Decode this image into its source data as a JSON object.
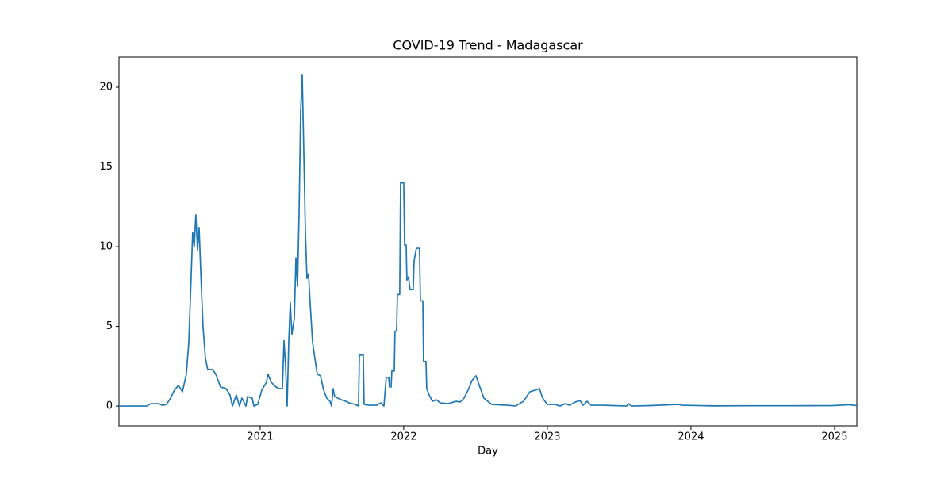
{
  "chart_data": {
    "type": "line",
    "title": "COVID-19 Trend - Madagascar",
    "x_label": "Day",
    "x": [
      2020.017,
      2020.21,
      2020.238,
      2020.293,
      2020.32,
      2020.348,
      2020.376,
      2020.403,
      2020.431,
      2020.459,
      2020.486,
      2020.503,
      2020.519,
      2020.53,
      2020.541,
      2020.552,
      2020.564,
      2020.575,
      2020.586,
      2020.602,
      2020.619,
      2020.635,
      2020.669,
      2020.691,
      2020.724,
      2020.762,
      2020.79,
      2020.807,
      2020.834,
      2020.856,
      2020.873,
      2020.901,
      2020.912,
      2020.945,
      2020.956,
      2020.983,
      2021.011,
      2021.044,
      2021.055,
      2021.077,
      2021.11,
      2021.133,
      2021.155,
      2021.166,
      2021.177,
      2021.188,
      2021.199,
      2021.21,
      2021.221,
      2021.238,
      2021.249,
      2021.26,
      2021.271,
      2021.282,
      2021.293,
      2021.304,
      2021.315,
      2021.326,
      2021.337,
      2021.348,
      2021.365,
      2021.381,
      2021.398,
      2021.42,
      2021.442,
      2021.464,
      2021.486,
      2021.497,
      2021.508,
      2021.519,
      2021.541,
      2021.564,
      2021.597,
      2021.619,
      2021.663,
      2021.685,
      2021.691,
      2021.718,
      2021.724,
      2021.757,
      2021.812,
      2021.84,
      2021.862,
      2021.878,
      2021.895,
      2021.901,
      2021.912,
      2021.917,
      2021.934,
      2021.939,
      2021.95,
      2021.956,
      2021.972,
      2021.978,
      2022.0,
      2022.006,
      2022.017,
      2022.022,
      2022.033,
      2022.044,
      2022.066,
      2022.072,
      2022.088,
      2022.11,
      2022.116,
      2022.133,
      2022.138,
      2022.155,
      2022.16,
      2022.177,
      2022.199,
      2022.227,
      2022.254,
      2022.309,
      2022.365,
      2022.392,
      2022.42,
      2022.448,
      2022.475,
      2022.503,
      2022.53,
      2022.558,
      2022.613,
      2022.724,
      2022.779,
      2022.834,
      2022.878,
      2022.917,
      2022.945,
      2022.967,
      2023.0,
      2023.055,
      2023.088,
      2023.122,
      2023.155,
      2023.193,
      2023.227,
      2023.249,
      2023.276,
      2023.304,
      2023.387,
      2023.552,
      2023.564,
      2023.586,
      2023.718,
      2023.912,
      2023.939,
      2024.16,
      2024.381,
      2024.713,
      2024.989,
      2025.099,
      2025.155
    ],
    "series": [
      {
        "name": "Madagascar",
        "color": "#1f77b4",
        "values": [
          0,
          0,
          0.15,
          0.15,
          0.05,
          0.1,
          0.5,
          1.0,
          1.3,
          0.9,
          2.0,
          4.0,
          8,
          10.9,
          10,
          12,
          9.8,
          11.2,
          8.5,
          5,
          3,
          2.3,
          2.3,
          2.0,
          1.2,
          1.1,
          0.7,
          0,
          0.7,
          0,
          0.5,
          0,
          0.6,
          0.5,
          0,
          0.1,
          1.0,
          1.5,
          2.0,
          1.5,
          1.2,
          1.1,
          1.1,
          4.1,
          2.5,
          0,
          4,
          6.5,
          4.5,
          5.5,
          9.3,
          7.5,
          12,
          18.5,
          20.8,
          16,
          11,
          8,
          8.3,
          6.5,
          4,
          3,
          2,
          1.9,
          1.0,
          0.5,
          0.3,
          0,
          1.1,
          0.6,
          0.5,
          0.4,
          0.3,
          0.2,
          0.1,
          0,
          3.2,
          3.2,
          0.1,
          0.05,
          0.05,
          0.2,
          0,
          1.8,
          1.8,
          1.2,
          1.2,
          2.2,
          2.2,
          4.7,
          4.7,
          7.0,
          7.0,
          14.0,
          14.0,
          10.1,
          10.1,
          7.9,
          8.1,
          7.3,
          7.3,
          9.1,
          9.9,
          9.9,
          6.6,
          6.6,
          2.8,
          2.8,
          1.1,
          0.7,
          0.3,
          0.4,
          0.2,
          0.15,
          0.3,
          0.25,
          0.5,
          1.0,
          1.6,
          1.9,
          1.2,
          0.5,
          0.1,
          0.05,
          0.0,
          0.3,
          0.9,
          1.0,
          1.1,
          0.5,
          0.1,
          0.1,
          0.0,
          0.15,
          0.05,
          0.25,
          0.35,
          0.05,
          0.3,
          0.05,
          0.05,
          0.0,
          0.15,
          0.0,
          0.03,
          0.1,
          0.05,
          0.01,
          0.02,
          0.02,
          0.03,
          0.08,
          0.03
        ]
      }
    ],
    "xlim": [
      2020.017,
      2025.155
    ],
    "xticks": [
      2021,
      2022,
      2023,
      2024,
      2025
    ],
    "ylim": [
      -1.24,
      21.89
    ],
    "yticks": [
      0,
      5,
      10,
      15,
      20
    ]
  }
}
